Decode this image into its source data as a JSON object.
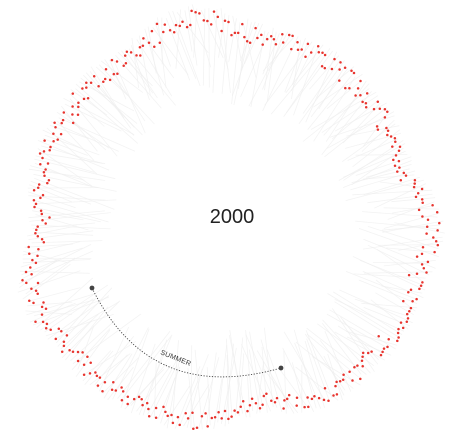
{
  "chart_data": {
    "type": "scatter",
    "title": "2000",
    "projection": "radial-circular",
    "series": [
      {
        "role": "daily-values",
        "color": "#e8342e"
      }
    ],
    "annotation": {
      "label": "SUMMER",
      "style": "dotted-arc"
    },
    "colors": {
      "points": "#e8342e",
      "haze": "#eeeeee",
      "annotation": "#444444",
      "text": "#222222"
    },
    "grid": false,
    "legend": "none"
  }
}
